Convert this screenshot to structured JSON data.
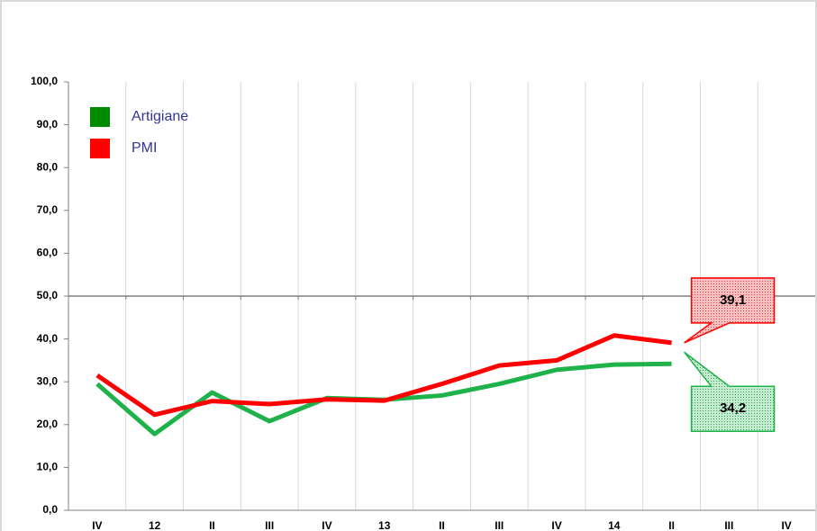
{
  "chart_data": {
    "type": "line",
    "categories": [
      "IV",
      "12",
      "II",
      "III",
      "IV",
      "13",
      "II",
      "III",
      "IV",
      "14",
      "II",
      "III",
      "IV"
    ],
    "series": [
      {
        "name": "Artigiane",
        "color": "#1fb24a",
        "legend_color": "#008a00",
        "values": [
          29.5,
          17.8,
          27.5,
          20.8,
          26.2,
          25.8,
          26.8,
          29.5,
          32.8,
          34.0,
          34.2,
          null,
          null
        ],
        "value_labels": [
          null,
          null,
          null,
          null,
          null,
          null,
          null,
          null,
          null,
          null,
          "34,2",
          null,
          null
        ]
      },
      {
        "name": "PMI",
        "color": "#ff0000",
        "legend_color": "#ff0000",
        "values": [
          31.5,
          22.3,
          25.5,
          24.8,
          25.9,
          25.6,
          29.5,
          33.8,
          35.0,
          40.8,
          39.1,
          null,
          null
        ],
        "value_labels": [
          null,
          null,
          null,
          null,
          null,
          null,
          null,
          null,
          null,
          null,
          "39,1",
          null,
          null
        ]
      }
    ],
    "ylim": [
      0,
      100
    ],
    "yticks": [
      {
        "value": 0,
        "label": "0,0"
      },
      {
        "value": 10,
        "label": "10,0"
      },
      {
        "value": 20,
        "label": "20,0"
      },
      {
        "value": 30,
        "label": "30,0"
      },
      {
        "value": 40,
        "label": "40,0"
      },
      {
        "value": 50,
        "label": "50,0"
      },
      {
        "value": 60,
        "label": "60,0"
      },
      {
        "value": 70,
        "label": "70,0"
      },
      {
        "value": 80,
        "label": "80,0"
      },
      {
        "value": 90,
        "label": "90,0"
      },
      {
        "value": 100,
        "label": "100,0"
      }
    ],
    "reference_line": 50,
    "grid": "x",
    "legend": "top-left"
  }
}
